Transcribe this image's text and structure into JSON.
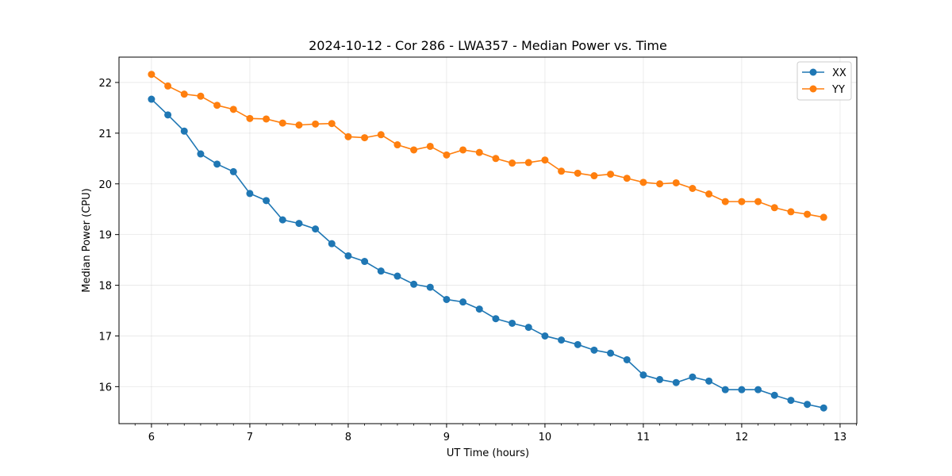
{
  "chart_data": {
    "type": "line",
    "title": "2024-10-12 - Cor 286 - LWA357 - Median Power vs. Time",
    "xlabel": "UT Time (hours)",
    "ylabel": "Median Power (CPU)",
    "xlim": [
      5.67,
      13.17
    ],
    "ylim": [
      15.27,
      22.5
    ],
    "xticks": [
      6,
      7,
      8,
      9,
      10,
      11,
      12,
      13
    ],
    "xtick_labels": [
      "6",
      "7",
      "8",
      "9",
      "10",
      "11",
      "12",
      "13"
    ],
    "yticks": [
      16,
      17,
      18,
      19,
      20,
      21,
      22
    ],
    "ytick_labels": [
      "16",
      "17",
      "18",
      "19",
      "20",
      "21",
      "22"
    ],
    "grid": true,
    "legend_position": "top-right",
    "x": [
      6.0,
      6.1667,
      6.3333,
      6.5,
      6.6667,
      6.8333,
      7.0,
      7.1667,
      7.3333,
      7.5,
      7.6667,
      7.8333,
      8.0,
      8.1667,
      8.3333,
      8.5,
      8.6667,
      8.8333,
      9.0,
      9.1667,
      9.3333,
      9.5,
      9.6667,
      9.8333,
      10.0,
      10.1667,
      10.3333,
      10.5,
      10.6667,
      10.8333,
      11.0,
      11.1667,
      11.3333,
      11.5,
      11.6667,
      11.8333,
      12.0,
      12.1667,
      12.3333,
      12.5,
      12.6667,
      12.8333
    ],
    "series": [
      {
        "name": "XX",
        "color": "#1f77b4",
        "values": [
          21.67,
          21.36,
          21.04,
          20.59,
          20.39,
          20.24,
          19.81,
          19.67,
          19.29,
          19.22,
          19.11,
          18.82,
          18.58,
          18.47,
          18.28,
          18.18,
          18.02,
          17.96,
          17.72,
          17.67,
          17.53,
          17.34,
          17.25,
          17.17,
          17.0,
          16.92,
          16.83,
          16.72,
          16.66,
          16.53,
          16.23,
          16.14,
          16.08,
          16.19,
          16.11,
          15.94,
          15.94,
          15.94,
          15.83,
          15.73,
          15.65,
          15.58
        ]
      },
      {
        "name": "YY",
        "color": "#ff7f0e",
        "values": [
          22.16,
          21.93,
          21.77,
          21.73,
          21.55,
          21.47,
          21.29,
          21.28,
          21.2,
          21.16,
          21.18,
          21.19,
          20.93,
          20.91,
          20.97,
          20.77,
          20.67,
          20.74,
          20.57,
          20.67,
          20.62,
          20.5,
          20.41,
          20.42,
          20.47,
          20.25,
          20.21,
          20.16,
          20.19,
          20.11,
          20.03,
          20.0,
          20.02,
          19.91,
          19.8,
          19.65,
          19.65,
          19.65,
          19.53,
          19.45,
          19.4,
          19.34
        ]
      }
    ]
  }
}
